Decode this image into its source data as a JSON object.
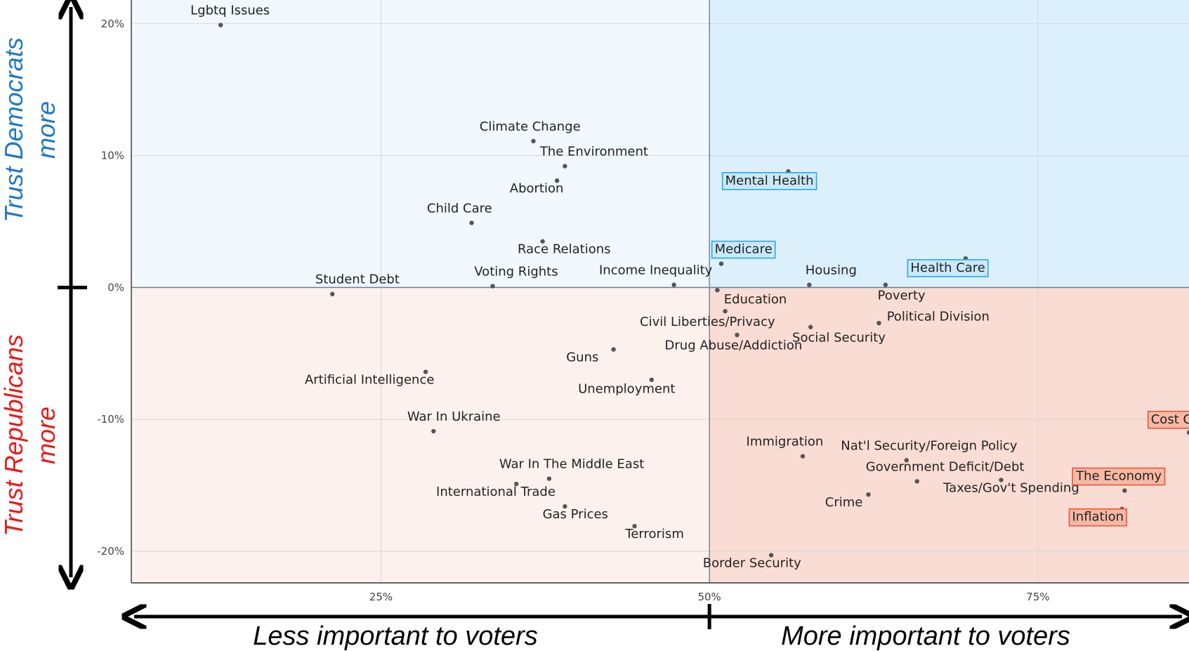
{
  "chart_data": {
    "type": "scatter",
    "title": "",
    "xlabel_left": "Less important to voters",
    "xlabel_right": "More important to voters",
    "ylabel_top": [
      "Trust Democrats",
      "more"
    ],
    "ylabel_bottom": [
      "Trust Republicans",
      "more"
    ],
    "xlim": [
      0.06,
      0.865
    ],
    "ylim": [
      -0.224,
      0.218
    ],
    "x_ticks": [
      {
        "value": 0.25,
        "label": "25%"
      },
      {
        "value": 0.5,
        "label": "50%"
      },
      {
        "value": 0.75,
        "label": "75%"
      }
    ],
    "y_ticks": [
      {
        "value": 0.2,
        "label": "20%"
      },
      {
        "value": 0.1,
        "label": "10%"
      },
      {
        "value": 0.0,
        "label": "0%"
      },
      {
        "value": -0.1,
        "label": "-10%"
      },
      {
        "value": -0.2,
        "label": "-20%"
      }
    ],
    "x_split": 0.5,
    "y_split": 0.0,
    "colors": {
      "dem_quadrant_low": "#f1f8fe",
      "dem_quadrant_high": "#dcf0fc",
      "rep_quadrant_low": "#fdf1ee",
      "rep_quadrant_high": "#f9dcd3",
      "dem_highlight": "#29a8e0",
      "rep_highlight": "#e8573a",
      "dem_title": "#1f77c8",
      "rep_title": "#e8191a"
    },
    "points": [
      {
        "label": "Lgbtq Issues",
        "x": 0.128,
        "y": 0.199,
        "lx": 0.105,
        "ly": 0.207,
        "anchor": "start"
      },
      {
        "label": "Climate Change",
        "x": 0.366,
        "y": 0.111,
        "lx": 0.325,
        "ly": 0.119,
        "anchor": "start"
      },
      {
        "label": "The Environment",
        "x": 0.39,
        "y": 0.092,
        "lx": 0.371,
        "ly": 0.1,
        "anchor": "start"
      },
      {
        "label": "Abortion",
        "x": 0.384,
        "y": 0.081,
        "lx": 0.348,
        "ly": 0.072,
        "anchor": "start"
      },
      {
        "label": "Child Care",
        "x": 0.319,
        "y": 0.049,
        "lx": 0.285,
        "ly": 0.057,
        "anchor": "start"
      },
      {
        "label": "Race Relations",
        "x": 0.373,
        "y": 0.035,
        "lx": 0.354,
        "ly": 0.026,
        "anchor": "start"
      },
      {
        "label": "Voting Rights",
        "x": 0.335,
        "y": 0.001,
        "lx": 0.321,
        "ly": 0.009,
        "anchor": "start"
      },
      {
        "label": "Income Inequality",
        "x": 0.473,
        "y": 0.002,
        "lx": 0.416,
        "ly": 0.01,
        "anchor": "start"
      },
      {
        "label": "Student Debt",
        "x": 0.213,
        "y": -0.005,
        "lx": 0.2,
        "ly": 0.003,
        "anchor": "start"
      },
      {
        "label": "Mental Health",
        "x": 0.56,
        "y": 0.088,
        "lx": 0.512,
        "ly": 0.078,
        "anchor": "start",
        "box": "dem"
      },
      {
        "label": "Medicare",
        "x": 0.509,
        "y": 0.018,
        "lx": 0.504,
        "ly": 0.026,
        "anchor": "start",
        "box": "dem"
      },
      {
        "label": "Housing",
        "x": 0.576,
        "y": 0.002,
        "lx": 0.573,
        "ly": 0.01,
        "anchor": "start"
      },
      {
        "label": "Health Care",
        "x": 0.695,
        "y": 0.022,
        "lx": 0.653,
        "ly": 0.012,
        "anchor": "start",
        "box": "dem"
      },
      {
        "label": "Poverty",
        "x": 0.634,
        "y": 0.002,
        "lx": 0.628,
        "ly": -0.009,
        "anchor": "start"
      },
      {
        "label": "Education",
        "x": 0.506,
        "y": -0.002,
        "lx": 0.511,
        "ly": -0.012,
        "anchor": "start"
      },
      {
        "label": "Civil Liberties/Privacy",
        "x": 0.512,
        "y": -0.018,
        "lx": 0.447,
        "ly": -0.029,
        "anchor": "start"
      },
      {
        "label": "Drug Abuse/Addiction",
        "x": 0.521,
        "y": -0.036,
        "lx": 0.466,
        "ly": -0.047,
        "anchor": "start"
      },
      {
        "label": "Political Division",
        "x": 0.629,
        "y": -0.027,
        "lx": 0.635,
        "ly": -0.025,
        "anchor": "start"
      },
      {
        "label": "Social Security",
        "x": 0.577,
        "y": -0.03,
        "lx": 0.563,
        "ly": -0.041,
        "anchor": "start"
      },
      {
        "label": "Guns",
        "x": 0.427,
        "y": -0.047,
        "lx": 0.391,
        "ly": -0.056,
        "anchor": "start"
      },
      {
        "label": "Unemployment",
        "x": 0.456,
        "y": -0.07,
        "lx": 0.4,
        "ly": -0.08,
        "anchor": "start"
      },
      {
        "label": "Artificial Intelligence",
        "x": 0.284,
        "y": -0.064,
        "lx": 0.192,
        "ly": -0.073,
        "anchor": "start"
      },
      {
        "label": "War In Ukraine",
        "x": 0.29,
        "y": -0.109,
        "lx": 0.27,
        "ly": -0.101,
        "anchor": "start"
      },
      {
        "label": "Cost Of Living",
        "x": 0.865,
        "y": -0.11,
        "lx": 0.836,
        "ly": -0.103,
        "anchor": "start",
        "box": "rep"
      },
      {
        "label": "Immigration",
        "x": 0.571,
        "y": -0.128,
        "lx": 0.528,
        "ly": -0.12,
        "anchor": "start"
      },
      {
        "label": "Nat'l Security/Foreign Policy",
        "x": 0.65,
        "y": -0.131,
        "lx": 0.6,
        "ly": -0.123,
        "anchor": "start"
      },
      {
        "label": "Government Deficit/Debt",
        "x": 0.658,
        "y": -0.147,
        "lx": 0.619,
        "ly": -0.139,
        "anchor": "start"
      },
      {
        "label": "Taxes/Gov't Spending",
        "x": 0.722,
        "y": -0.146,
        "lx": 0.678,
        "ly": -0.155,
        "anchor": "start"
      },
      {
        "label": "The Economy",
        "x": 0.816,
        "y": -0.154,
        "lx": 0.779,
        "ly": -0.146,
        "anchor": "start",
        "box": "rep"
      },
      {
        "label": "Crime",
        "x": 0.621,
        "y": -0.157,
        "lx": 0.588,
        "ly": -0.166,
        "anchor": "start"
      },
      {
        "label": "Inflation",
        "x": 0.814,
        "y": -0.168,
        "lx": 0.776,
        "ly": -0.177,
        "anchor": "start",
        "box": "rep"
      },
      {
        "label": "War In The Middle East",
        "x": 0.378,
        "y": -0.145,
        "lx": 0.34,
        "ly": -0.137,
        "anchor": "start"
      },
      {
        "label": "International Trade",
        "x": 0.353,
        "y": -0.149,
        "lx": 0.292,
        "ly": -0.158,
        "anchor": "start"
      },
      {
        "label": "Gas Prices",
        "x": 0.39,
        "y": -0.166,
        "lx": 0.373,
        "ly": -0.175,
        "anchor": "start"
      },
      {
        "label": "Terrorism",
        "x": 0.443,
        "y": -0.181,
        "lx": 0.436,
        "ly": -0.19,
        "anchor": "start"
      },
      {
        "label": "Border Security",
        "x": 0.547,
        "y": -0.203,
        "lx": 0.495,
        "ly": -0.212,
        "anchor": "start"
      }
    ]
  }
}
